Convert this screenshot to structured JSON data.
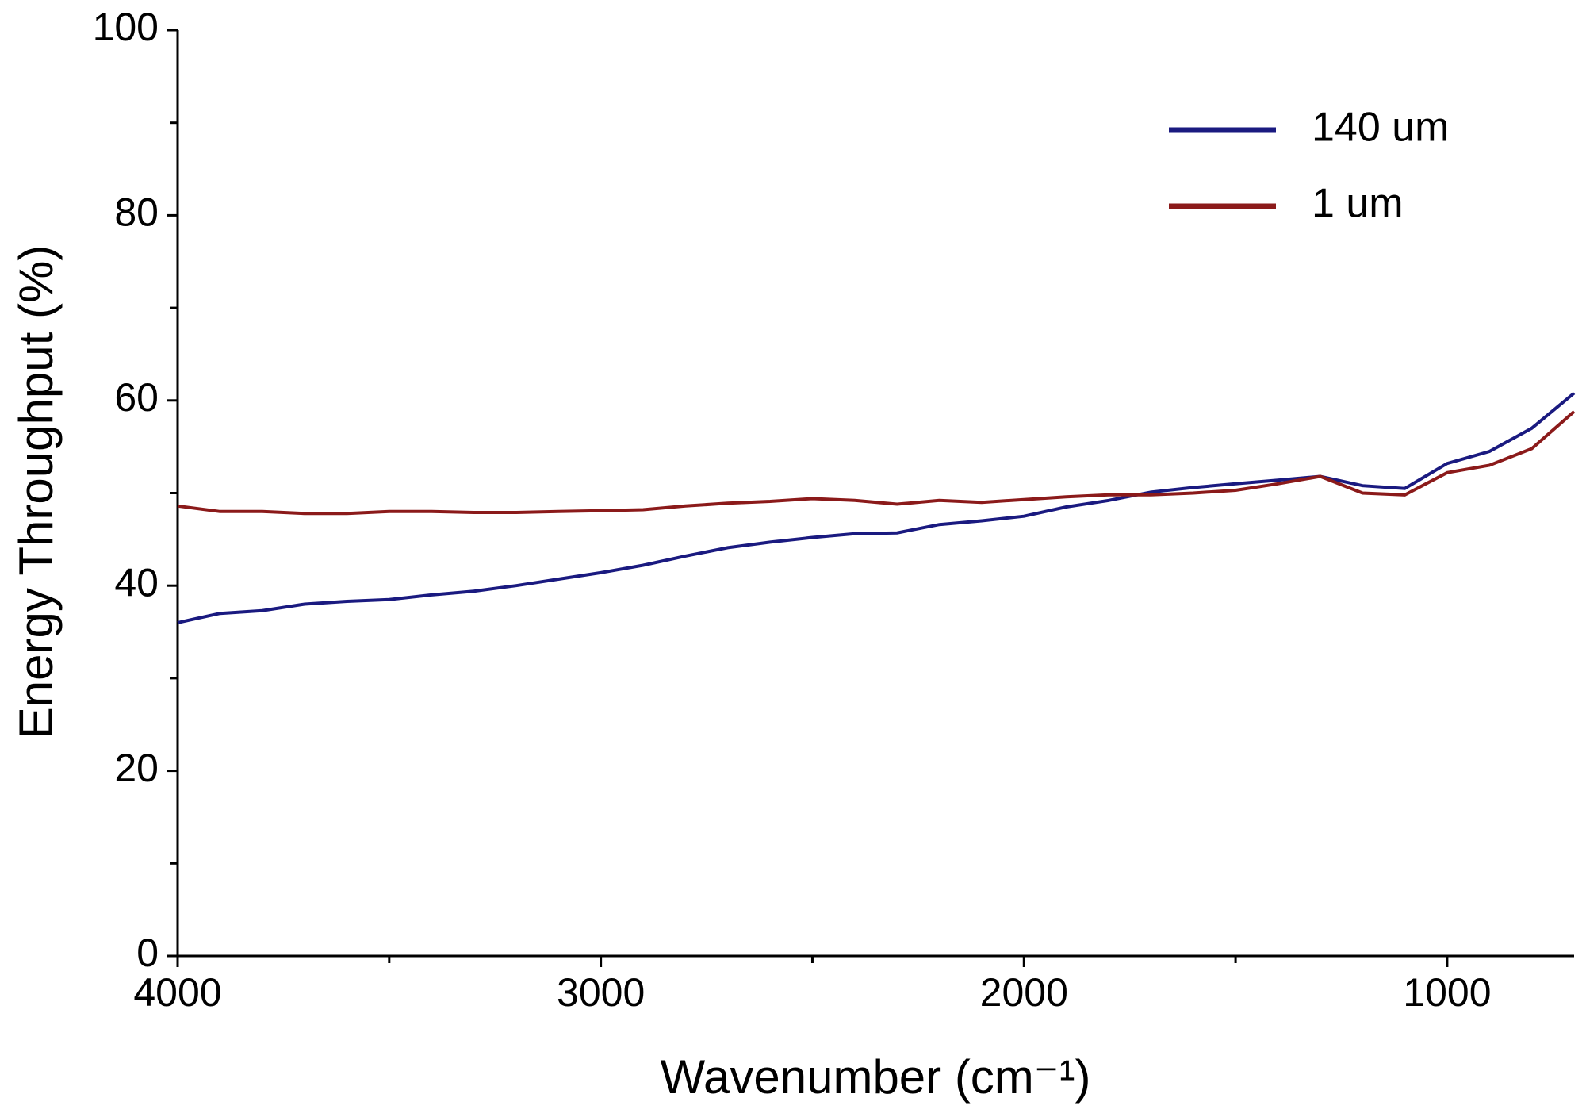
{
  "chart_data": {
    "type": "line",
    "x_label": "Wavenumber (cm⁻¹)",
    "y_label": "Energy Throughput (%)",
    "xlim": [
      4000,
      700
    ],
    "ylim": [
      0,
      100
    ],
    "xticks": [
      4000,
      3000,
      2000,
      1000
    ],
    "xminor_ticks": [
      3500,
      2500,
      1500
    ],
    "yticks": [
      0,
      20,
      40,
      60,
      80,
      100
    ],
    "yminor_ticks": [
      10,
      30,
      50,
      70,
      90
    ],
    "legend": "upper right",
    "x": [
      4000,
      3900,
      3800,
      3700,
      3600,
      3500,
      3400,
      3300,
      3200,
      3100,
      3000,
      2900,
      2800,
      2700,
      2600,
      2500,
      2400,
      2300,
      2200,
      2100,
      2000,
      1900,
      1800,
      1700,
      1600,
      1500,
      1400,
      1300,
      1200,
      1100,
      1000,
      900,
      800,
      700
    ],
    "series": [
      {
        "name": "140 um",
        "color": "#1a1a80",
        "values": [
          36,
          37,
          37.3,
          38,
          38.3,
          38.5,
          39,
          39.4,
          40,
          40.7,
          41.4,
          42.2,
          43.2,
          44.1,
          44.7,
          45.2,
          45.6,
          45.7,
          46.6,
          47,
          47.5,
          48.5,
          49.2,
          50.1,
          50.6,
          51,
          51.4,
          51.8,
          50.8,
          50.5,
          53.2,
          54.5,
          57,
          60.8
        ]
      },
      {
        "name": "1 um",
        "color": "#8b1a1a",
        "values": [
          48.6,
          48,
          48,
          47.8,
          47.8,
          48,
          48,
          47.9,
          47.9,
          48,
          48.1,
          48.2,
          48.6,
          48.9,
          49.1,
          49.4,
          49.2,
          48.8,
          49.2,
          49,
          49.3,
          49.6,
          49.8,
          49.8,
          50,
          50.3,
          51,
          51.8,
          50,
          49.8,
          52.2,
          53,
          54.8,
          58.8
        ]
      }
    ]
  }
}
